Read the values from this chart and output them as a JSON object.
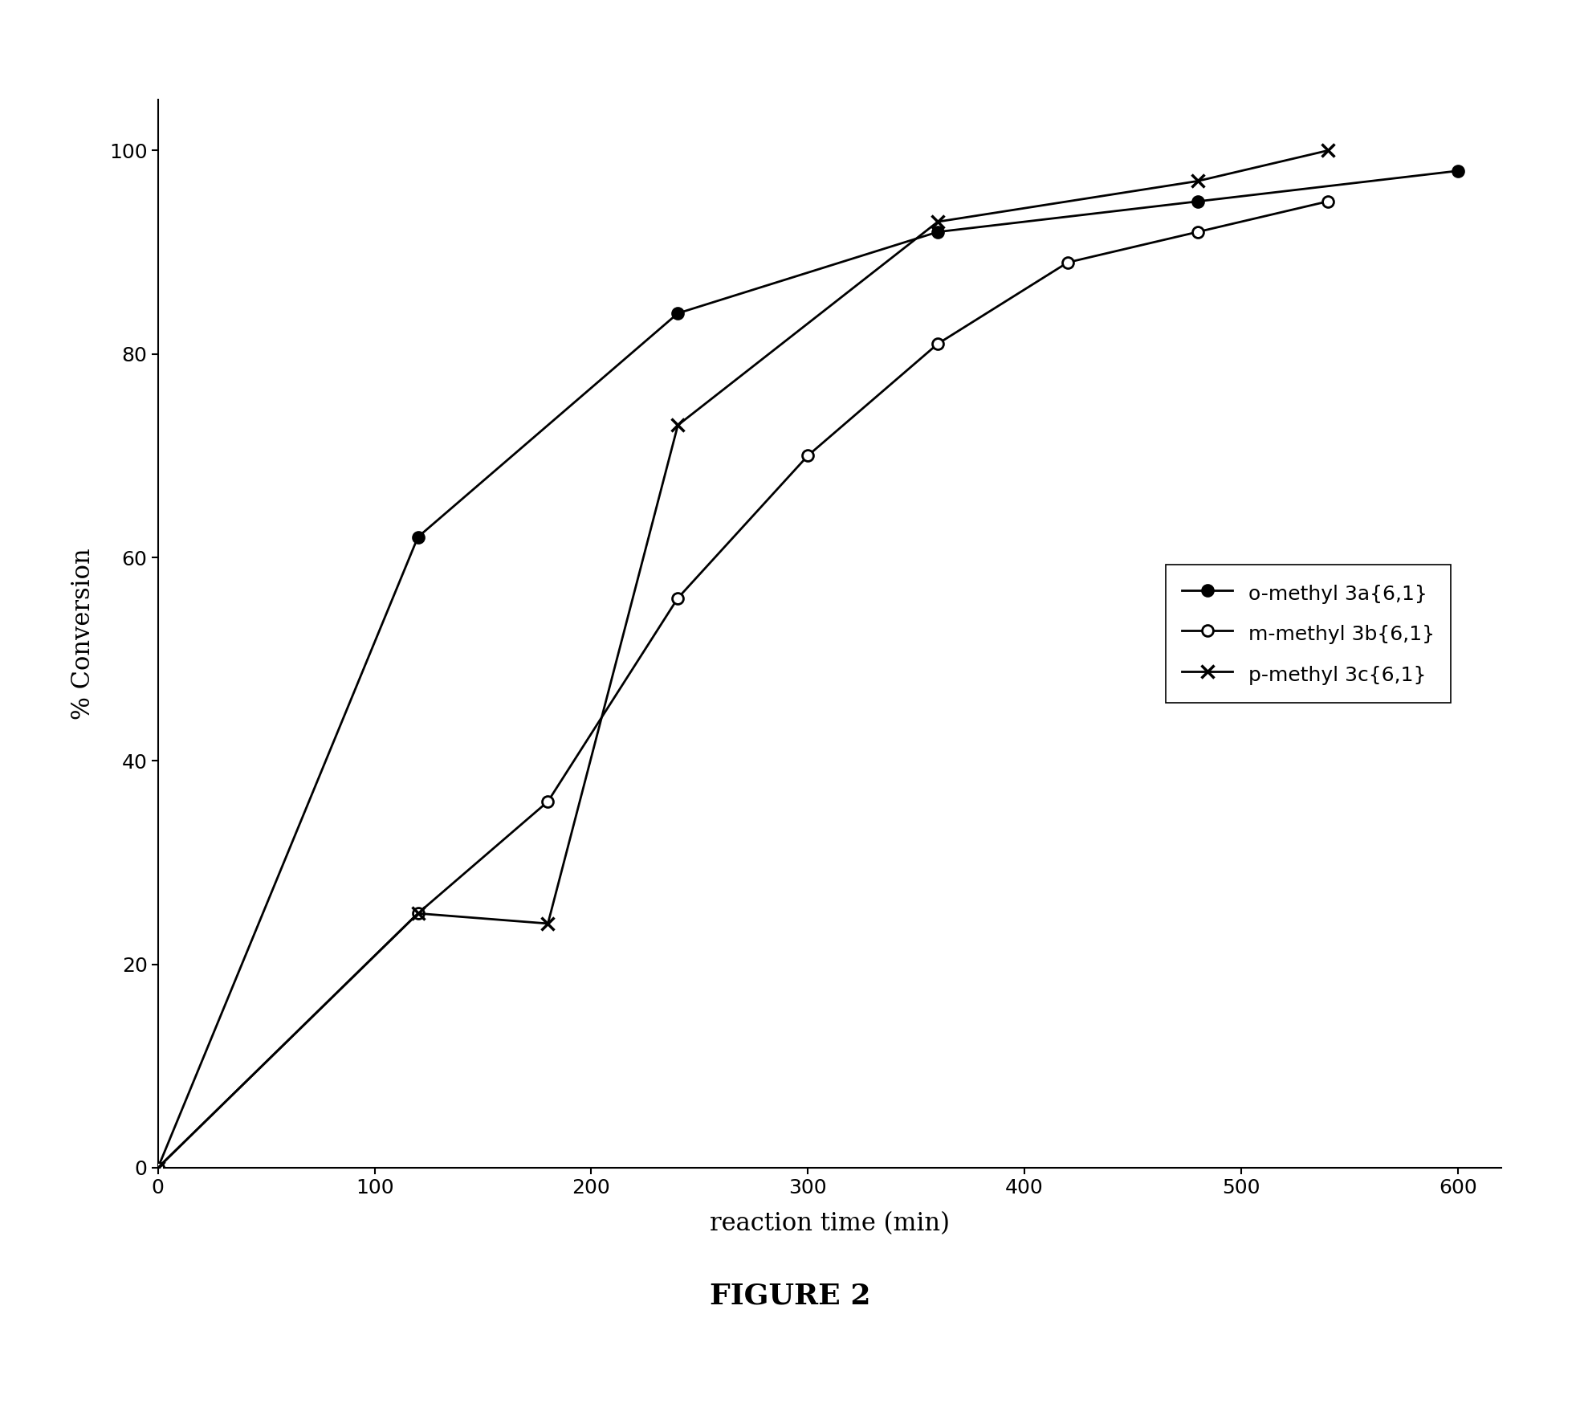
{
  "series": [
    {
      "label": "o-methyl 3a{6,1}",
      "x": [
        0,
        120,
        240,
        360,
        480,
        600
      ],
      "y": [
        0,
        62,
        84,
        92,
        95,
        98
      ],
      "marker": "o",
      "marker_filled": true,
      "linewidth": 2.0
    },
    {
      "label": "m-methyl 3b{6,1}",
      "x": [
        0,
        120,
        180,
        240,
        300,
        360,
        420,
        480,
        540
      ],
      "y": [
        0,
        25,
        36,
        56,
        70,
        81,
        89,
        92,
        95
      ],
      "marker": "o",
      "marker_filled": false,
      "linewidth": 2.0
    },
    {
      "label": "p-methyl 3c{6,1}",
      "x": [
        0,
        120,
        180,
        240,
        360,
        480,
        540
      ],
      "y": [
        0,
        25,
        24,
        73,
        93,
        97,
        100
      ],
      "marker": "x",
      "marker_filled": false,
      "linewidth": 2.0
    }
  ],
  "xlabel": "reaction time (min)",
  "ylabel": "% Conversion",
  "xlim": [
    0,
    620
  ],
  "ylim": [
    0,
    105
  ],
  "xticks": [
    0,
    100,
    200,
    300,
    400,
    500,
    600
  ],
  "yticks": [
    0,
    20,
    40,
    60,
    80,
    100
  ],
  "figure_caption": "FIGURE 2",
  "line_color": "#000000",
  "background_color": "#ffffff",
  "marker_size": 10,
  "marker_linewidth": 2.0
}
